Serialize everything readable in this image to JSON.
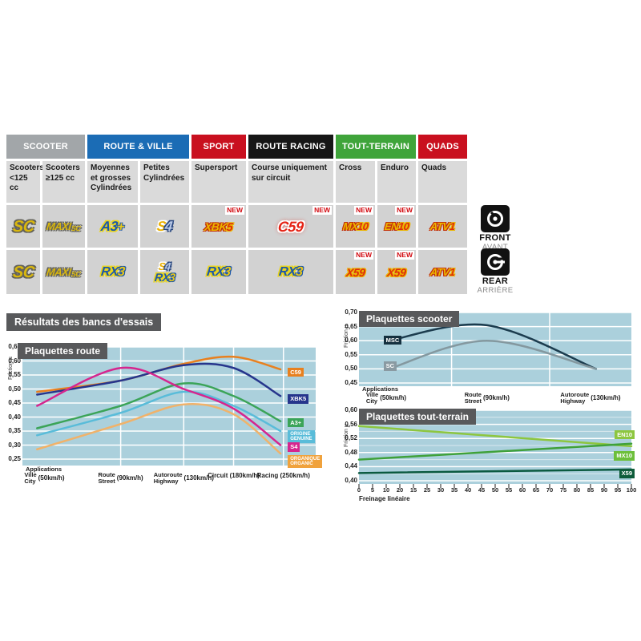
{
  "results_heading": "Résultats des bancs d'essais",
  "front_rear": {
    "front": {
      "label": "FRONT",
      "sub": "AVANT",
      "icon": "front-brake-disc-icon"
    },
    "rear": {
      "label": "REAR",
      "sub": "ARRIÈRE",
      "icon": "rear-brake-disc-icon"
    }
  },
  "table": {
    "new_label": "NEW",
    "groups": [
      {
        "label": "SCOOTER",
        "color": "#a2a6a9",
        "span": 2
      },
      {
        "label": "ROUTE & VILLE",
        "color": "#1b6cb5",
        "span": 2
      },
      {
        "label": "SPORT",
        "color": "#c9101f",
        "span": 1
      },
      {
        "label": "ROUTE RACING",
        "color": "#161616",
        "span": 1
      },
      {
        "label": "TOUT-TERRAIN",
        "color": "#3fa43a",
        "span": 2
      },
      {
        "label": "QUADS",
        "color": "#c9101f",
        "span": 1
      }
    ],
    "subheaders": [
      "Scooters <125 cc",
      "Scooters ≥125 cc",
      "Moyennes et grosses Cylindrées",
      "Petites Cylindrées",
      "Supersport",
      "Course uniquement sur circuit",
      "Cross",
      "Enduro",
      "Quads"
    ],
    "rows": [
      {
        "side": "front",
        "cells": [
          {
            "logos": [
              [
                {
                  "t": "SC",
                  "s": "p-gold sz20"
                }
              ]
            ],
            "new": false
          },
          {
            "logos": [
              [
                {
                  "t": "MAXI",
                  "s": "p-gold sz13"
                },
                {
                  "t": "SC",
                  "s": "p-gold sz9 subsc"
                }
              ]
            ],
            "new": false
          },
          {
            "logos": [
              [
                {
                  "t": "A3",
                  "s": "p-bluegold sz17"
                },
                {
                  "t": "+",
                  "s": "p-goldplus sz16"
                }
              ]
            ],
            "new": false
          },
          {
            "logos": [
              [
                {
                  "t": "S",
                  "s": "p-golds sz17"
                },
                {
                  "t": "4",
                  "s": "p-steel sz17"
                }
              ]
            ],
            "new": false
          },
          {
            "logos": [
              [
                {
                  "t": "XBK",
                  "s": "p-goldred sz14"
                },
                {
                  "t": "5",
                  "s": "p-redgold sz14"
                }
              ]
            ],
            "new": true
          },
          {
            "logos": [
              [
                {
                  "t": "C59",
                  "s": "p-c59 sz18"
                }
              ]
            ],
            "new": true
          },
          {
            "logos": [
              [
                {
                  "t": "MX",
                  "s": "p-goldred sz13"
                },
                {
                  "t": "10",
                  "s": "p-redgold sz13"
                }
              ]
            ],
            "new": true
          },
          {
            "logos": [
              [
                {
                  "t": "EN",
                  "s": "p-goldred sz13"
                },
                {
                  "t": "10",
                  "s": "p-redgold sz13"
                }
              ]
            ],
            "new": true
          },
          {
            "logos": [
              [
                {
                  "t": "ATV",
                  "s": "p-goldred sz13"
                },
                {
                  "t": "1",
                  "s": "p-redgold sz13"
                }
              ]
            ],
            "new": false
          }
        ]
      },
      {
        "side": "rear",
        "cells": [
          {
            "logos": [
              [
                {
                  "t": "SC",
                  "s": "p-gold sz20"
                }
              ]
            ],
            "new": false
          },
          {
            "logos": [
              [
                {
                  "t": "MAXI",
                  "s": "p-gold sz13"
                },
                {
                  "t": "SC",
                  "s": "p-gold sz9 subsc"
                }
              ]
            ],
            "new": false
          },
          {
            "logos": [
              [
                {
                  "t": "RX",
                  "s": "p-bluegold sz16"
                },
                {
                  "t": "3",
                  "s": "p-goldblue sz16"
                }
              ]
            ],
            "new": false
          },
          {
            "logos": [
              [
                {
                  "t": "S",
                  "s": "p-golds sz13"
                },
                {
                  "t": "4",
                  "s": "p-steel sz13"
                }
              ],
              [
                {
                  "t": "RX",
                  "s": "p-bluegold sz14"
                },
                {
                  "t": "3",
                  "s": "p-goldblue sz14"
                }
              ]
            ],
            "new": false
          },
          {
            "logos": [
              [
                {
                  "t": "RX",
                  "s": "p-bluegold sz16"
                },
                {
                  "t": "3",
                  "s": "p-goldblue sz16"
                }
              ]
            ],
            "new": false
          },
          {
            "logos": [
              [
                {
                  "t": "RX",
                  "s": "p-bluegold sz16"
                },
                {
                  "t": "3",
                  "s": "p-goldblue sz16"
                }
              ]
            ],
            "new": false
          },
          {
            "logos": [
              [
                {
                  "t": "X59",
                  "s": "p-redgold sz14"
                }
              ]
            ],
            "new": true
          },
          {
            "logos": [
              [
                {
                  "t": "X59",
                  "s": "p-redgold sz14"
                }
              ]
            ],
            "new": true
          },
          {
            "logos": [
              [
                {
                  "t": "ATV",
                  "s": "p-goldred sz13"
                },
                {
                  "t": "1",
                  "s": "p-redgold sz13"
                }
              ]
            ],
            "new": false
          }
        ]
      }
    ]
  },
  "chart_data": [
    {
      "id": "route",
      "type": "line",
      "title": "Plaquettes route",
      "ylabel": "Friction µ",
      "applications_label": "Applications",
      "ylim": [
        0.25,
        0.65
      ],
      "yticks": [
        [
          "0,65",
          0.65
        ],
        [
          "0,60",
          0.6
        ],
        [
          "0,55",
          0.55
        ],
        [
          "0,50",
          0.5
        ],
        [
          "0,45",
          0.45
        ],
        [
          "0,40",
          0.4
        ],
        [
          "0,35",
          0.35
        ],
        [
          "0,30",
          0.3
        ],
        [
          "0,25",
          0.25
        ]
      ],
      "categories": [
        {
          "fr": "Ville",
          "en": "City",
          "speed": "(50km/h)"
        },
        {
          "fr": "Route",
          "en": "Street",
          "speed": "(90km/h)"
        },
        {
          "fr": "Autoroute",
          "en": "Highway",
          "speed": "(130km/h)"
        },
        {
          "fr": "Circuit",
          "en": "",
          "speed": "(180km/h)"
        },
        {
          "fr": "Racing",
          "en": "",
          "speed": "(250km/h)"
        }
      ],
      "series": [
        {
          "name": "C59",
          "color": "#e8801f",
          "values": [
            0.49,
            0.53,
            0.59,
            0.615,
            0.57
          ],
          "label": {
            "lines": [
              "C59"
            ],
            "bg": "#e8801f",
            "v": 0.562
          }
        },
        {
          "name": "XBK5",
          "color": "#26358c",
          "values": [
            0.48,
            0.53,
            0.585,
            0.575,
            0.475
          ],
          "label": {
            "lines": [
              "XBK5"
            ],
            "bg": "#26358c",
            "v": 0.466
          }
        },
        {
          "name": "A3+",
          "color": "#3ba458",
          "values": [
            0.36,
            0.44,
            0.52,
            0.475,
            0.385
          ],
          "label": {
            "lines": [
              "A3+"
            ],
            "bg": "#3ba458",
            "v": 0.382
          }
        },
        {
          "name": "ORIGINE GENUINE",
          "color": "#59bcd9",
          "values": [
            0.335,
            0.415,
            0.49,
            0.44,
            0.35
          ],
          "label": {
            "lines": [
              "ORIGINE",
              "GENUINE"
            ],
            "bg": "#59bcd9",
            "v": 0.34
          }
        },
        {
          "name": "S4",
          "color": "#d6258e",
          "values": [
            0.44,
            0.575,
            0.5,
            0.43,
            0.3
          ],
          "label": {
            "lines": [
              "S4"
            ],
            "bg": "#d6258e",
            "v": 0.295
          }
        },
        {
          "name": "ORGANIQUE ORGANIC",
          "color": "#f0b26a",
          "values": [
            0.285,
            0.375,
            0.445,
            0.41,
            0.27
          ],
          "label": {
            "lines": [
              "ORGANIQUE",
              "ORGANIC"
            ],
            "bg": "#f0a23c",
            "v": 0.25
          }
        }
      ]
    },
    {
      "id": "scooter",
      "type": "line",
      "title": "Plaquettes scooter",
      "ylabel": "Friction µ",
      "applications_label": "Applications",
      "ylim": [
        0.45,
        0.7
      ],
      "yticks": [
        [
          "0,70",
          0.7
        ],
        [
          "0,65",
          0.65
        ],
        [
          "0,60",
          0.6
        ],
        [
          "0,55",
          0.55
        ],
        [
          "0,50",
          0.5
        ],
        [
          "0,45",
          0.45
        ]
      ],
      "categories": [
        {
          "fr": "Ville",
          "en": "City",
          "speed": "(50km/h)"
        },
        {
          "fr": "Route",
          "en": "Street",
          "speed": "(90km/h)"
        },
        {
          "fr": "Autoroute",
          "en": "Highway",
          "speed": "(130km/h)"
        }
      ],
      "series": [
        {
          "name": "MSC",
          "color": "#1c3c4e",
          "values": [
            0.6,
            0.655,
            0.5
          ],
          "label": {
            "lines": [
              "MSC"
            ],
            "bg": "#15303f",
            "v": 0.604,
            "fx": 0.09
          }
        },
        {
          "name": "SC",
          "color": "#84989f",
          "values": [
            0.5,
            0.6,
            0.5
          ],
          "label": {
            "lines": [
              "SC"
            ],
            "bg": "#8a9aa2",
            "v": 0.512,
            "fx": 0.09
          }
        }
      ]
    },
    {
      "id": "terrain",
      "type": "line",
      "title": "Plaquettes tout-terrain",
      "ylabel": "Friction µ",
      "xlabel": "Freinage linéaire",
      "ylim": [
        0.4,
        0.6
      ],
      "yticks": [
        [
          "0,60",
          0.6
        ],
        [
          "0,56",
          0.56
        ],
        [
          "0,52",
          0.52
        ],
        [
          "0,48",
          0.48
        ],
        [
          "0,44",
          0.44
        ],
        [
          "0,40",
          0.4
        ]
      ],
      "xticks": [
        "0",
        "5",
        "10",
        "20",
        "15",
        "25",
        "30",
        "35",
        "40",
        "45",
        "50",
        "55",
        "60",
        "65",
        "70",
        "75",
        "80",
        "85",
        "90",
        "95",
        "100"
      ],
      "series": [
        {
          "name": "EN10",
          "color": "#8dc63f",
          "values": [
            0.555,
            0.498
          ],
          "label": {
            "lines": [
              "EN10"
            ],
            "bg": "#8dc63f",
            "v": 0.532
          }
        },
        {
          "name": "MX10",
          "color": "#3fa13a",
          "values": [
            0.46,
            0.505
          ],
          "label": {
            "lines": [
              "MX10"
            ],
            "bg": "#6dbf3b",
            "v": 0.472
          }
        },
        {
          "name": "X59",
          "color": "#0b5a40",
          "values": [
            0.422,
            0.432
          ],
          "label": {
            "lines": [
              "X59"
            ],
            "bg": "#0e5c3a",
            "v": 0.422
          }
        }
      ]
    }
  ]
}
